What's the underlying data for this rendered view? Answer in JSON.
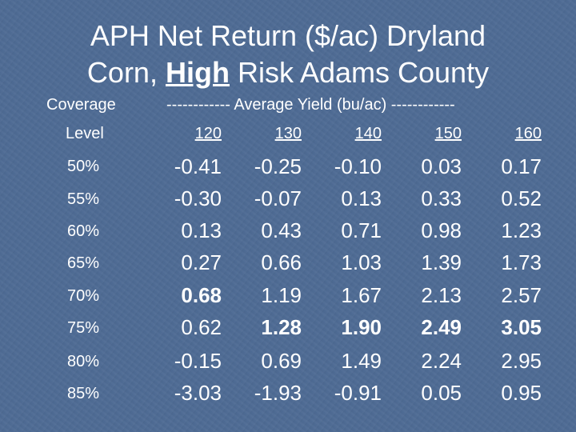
{
  "title": {
    "line1": "APH Net Return ($/ac) Dryland",
    "line2_pre": "Corn, ",
    "line2_hl": "High",
    "line2_post": " Risk Adams County"
  },
  "header": {
    "coverage": "Coverage",
    "level": "Level",
    "avg_yield": "------------ Average Yield (bu/ac) ------------",
    "yields": [
      "120",
      "130",
      "140",
      "150",
      "160"
    ]
  },
  "rows": [
    {
      "level": "50%",
      "values": [
        "-0.41",
        "-0.25",
        "-0.10",
        "0.03",
        "0.17"
      ]
    },
    {
      "level": "55%",
      "values": [
        "-0.30",
        "-0.07",
        "0.13",
        "0.33",
        "0.52"
      ]
    },
    {
      "level": "60%",
      "values": [
        "0.13",
        "0.43",
        "0.71",
        "0.98",
        "1.23"
      ]
    },
    {
      "level": "65%",
      "values": [
        "0.27",
        "0.66",
        "1.03",
        "1.39",
        "1.73"
      ]
    },
    {
      "level": "70%",
      "values": [
        "0.68",
        "1.19",
        "1.67",
        "2.13",
        "2.57"
      ]
    },
    {
      "level": "75%",
      "values": [
        "0.62",
        "1.28",
        "1.90",
        "2.49",
        "3.05"
      ]
    },
    {
      "level": "80%",
      "values": [
        "-0.15",
        "0.69",
        "1.49",
        "2.24",
        "2.95"
      ]
    },
    {
      "level": "85%",
      "values": [
        "-3.03",
        "-1.93",
        "-0.91",
        "0.05",
        "0.95"
      ]
    }
  ],
  "bold_cells": [
    [
      4,
      0
    ],
    [
      5,
      1
    ],
    [
      5,
      2
    ],
    [
      5,
      3
    ],
    [
      5,
      4
    ]
  ]
}
